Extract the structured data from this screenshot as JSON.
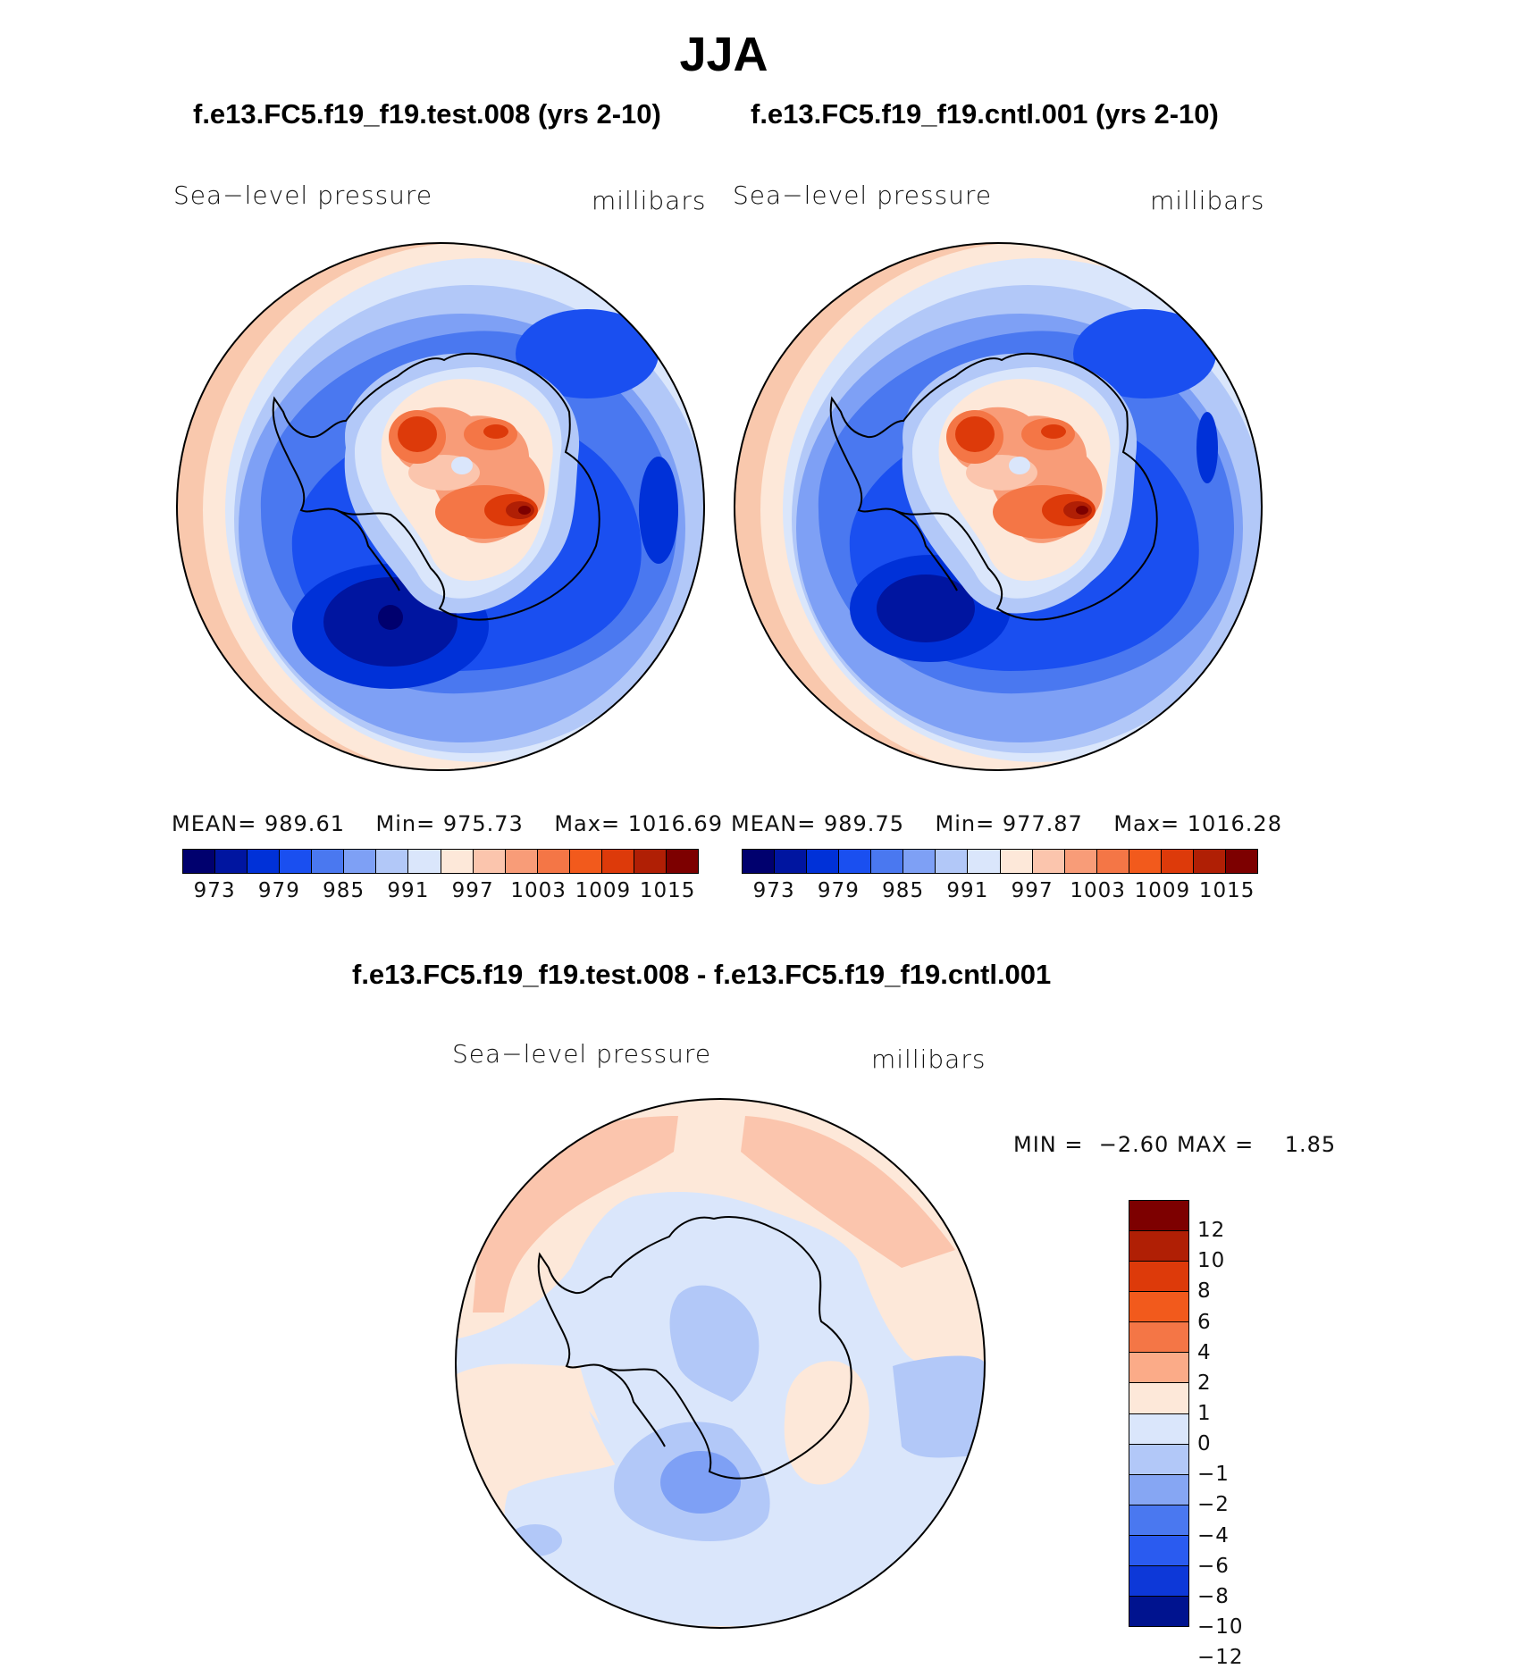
{
  "title": "JJA",
  "panels": [
    {
      "case": "f.e13.FC5.f19_f19.test.008 (yrs 2-10)",
      "variable": "Sea−level pressure",
      "units": "millibars",
      "stats": {
        "mean_label": "MEAN=",
        "mean": "989.61",
        "min_label": "Min=",
        "min": "975.73",
        "max_label": "Max=",
        "max": "1016.69"
      }
    },
    {
      "case": "f.e13.FC5.f19_f19.cntl.001 (yrs 2-10)",
      "variable": "Sea−level pressure",
      "units": "millibars",
      "stats": {
        "mean_label": "MEAN=",
        "mean": "989.75",
        "min_label": "Min=",
        "min": "977.87",
        "max_label": "Max=",
        "max": "1016.28"
      }
    }
  ],
  "colorbar_top": {
    "colors": [
      "#00006e",
      "#0015a0",
      "#0031d8",
      "#1a4ff0",
      "#4a78f0",
      "#7ea0f5",
      "#b2c8f8",
      "#dae6fb",
      "#fde8d9",
      "#fbc5ad",
      "#f89c78",
      "#f47646",
      "#f25a1c",
      "#dd3a0a",
      "#b01f05",
      "#7d0000"
    ],
    "tick_labels": [
      "973",
      "979",
      "985",
      "991",
      "997",
      "1003",
      "1009",
      "1015"
    ]
  },
  "difference": {
    "title": "f.e13.FC5.f19_f19.test.008 - f.e13.FC5.f19_f19.cntl.001",
    "variable": "Sea−level pressure",
    "units": "millibars",
    "min_label": "MIN =",
    "min": "−2.60",
    "max_label": "MAX =",
    "max": "1.85",
    "colorbar": {
      "colors": [
        "#7d0000",
        "#b01f05",
        "#dd3a0a",
        "#f25a1c",
        "#f47646",
        "#fbab88",
        "#fde8d9",
        "#dae6fb",
        "#b2c8f8",
        "#86a6f3",
        "#4a78f0",
        "#2a5bf0",
        "#0d38d8",
        "#00138f"
      ],
      "tick_labels": [
        "12",
        "10",
        "8",
        "6",
        "4",
        "2",
        "1",
        "0",
        "−1",
        "−2",
        "−4",
        "−6",
        "−8",
        "−10",
        "−12"
      ]
    }
  }
}
